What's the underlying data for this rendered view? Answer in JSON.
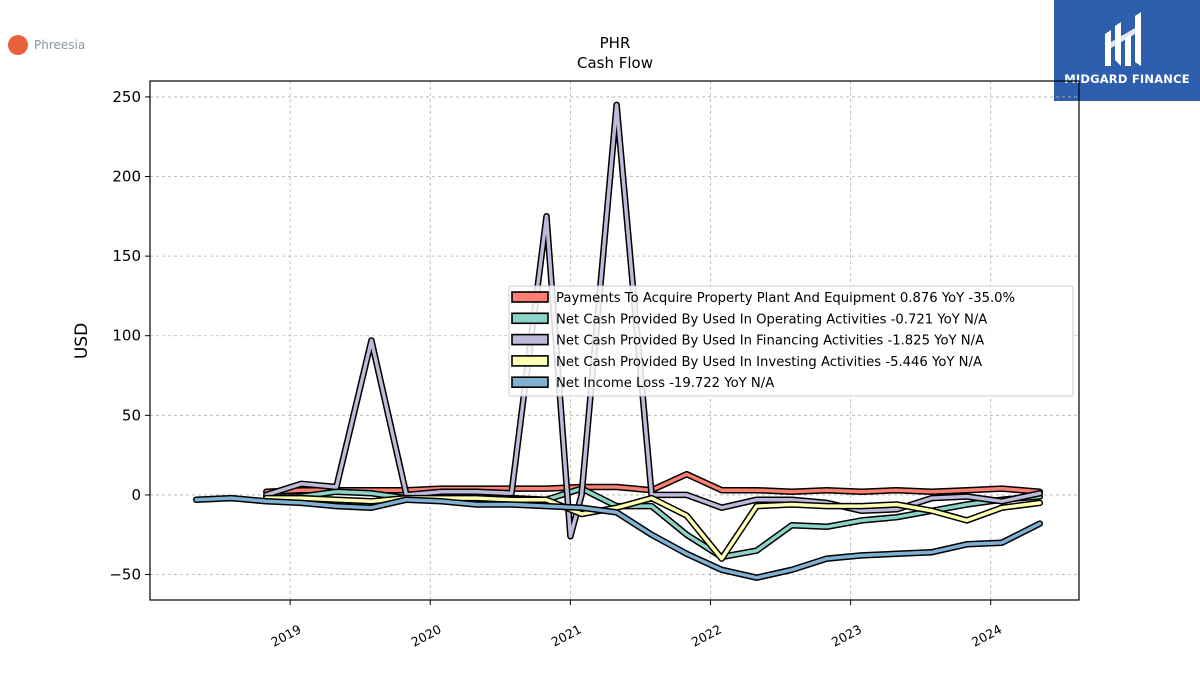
{
  "brand": {
    "name": "MIDGARD FINANCE",
    "color": "#2d5fae"
  },
  "company": {
    "name": "Phreesia",
    "logo_color": "#e8613a"
  },
  "chart_data": {
    "type": "line",
    "title": "PHR",
    "subtitle": "Cash Flow",
    "ylabel": "USD",
    "xlabel": "",
    "ylim": [
      -66,
      260
    ],
    "xlim": [
      2018.0,
      2024.63
    ],
    "yticks": [
      -50,
      0,
      50,
      100,
      150,
      200,
      250
    ],
    "xticks": [
      2019,
      2020,
      2021,
      2022,
      2023,
      2024
    ],
    "ytick_labels": [
      "−50",
      "0",
      "50",
      "100",
      "150",
      "200",
      "250"
    ],
    "xtick_labels": [
      "2019",
      "2020",
      "2021",
      "2022",
      "2023",
      "2024"
    ],
    "grid": true,
    "legend_position": "center-right",
    "series": [
      {
        "name": "Payments To Acquire Property Plant And Equipment  0.876 YoY -35.0%",
        "color": "#fb8072",
        "x": [
          2018.83,
          2019.08,
          2019.33,
          2019.58,
          2019.83,
          2020.08,
          2020.33,
          2020.58,
          2020.83,
          2021.08,
          2021.33,
          2021.58,
          2021.83,
          2022.08,
          2022.33,
          2022.58,
          2022.83,
          2023.08,
          2023.33,
          2023.58,
          2023.83,
          2024.08,
          2024.35
        ],
        "y": [
          2,
          3,
          3,
          3,
          3,
          4,
          4,
          4,
          4,
          5,
          5,
          3,
          13,
          3,
          3,
          2,
          3,
          2,
          3,
          2,
          3,
          4,
          2
        ]
      },
      {
        "name": "Net Cash Provided By Used In Operating Activities  -0.721 YoY N/A",
        "color": "#8dd3c7",
        "x": [
          2018.83,
          2019.08,
          2019.33,
          2019.58,
          2019.83,
          2020.08,
          2020.33,
          2020.58,
          2020.83,
          2021.08,
          2021.33,
          2021.58,
          2021.83,
          2022.08,
          2022.33,
          2022.58,
          2022.83,
          2023.08,
          2023.33,
          2023.58,
          2023.83,
          2024.08,
          2024.35
        ],
        "y": [
          -1,
          -1,
          2,
          1,
          -2,
          0,
          -1,
          -2,
          -3,
          4,
          -7,
          -7,
          -25,
          -39,
          -35,
          -19,
          -20,
          -16,
          -14,
          -10,
          -6,
          -3,
          -1
        ]
      },
      {
        "name": "Net Cash Provided By Used In Financing Activities  -1.825 YoY N/A",
        "color": "#bebada",
        "x": [
          2018.83,
          2019.08,
          2019.33,
          2019.58,
          2019.83,
          2020.08,
          2020.33,
          2020.58,
          2020.83,
          2021.0,
          2021.08,
          2021.33,
          2021.58,
          2021.83,
          2022.08,
          2022.33,
          2022.58,
          2022.83,
          2023.08,
          2023.33,
          2023.58,
          2023.83,
          2024.08,
          2024.35
        ],
        "y": [
          0,
          7,
          5,
          97,
          0,
          2,
          2,
          1,
          175,
          -26,
          0,
          245,
          0,
          0,
          -8,
          -3,
          -3,
          -5,
          -10,
          -9,
          -2,
          -1,
          -4,
          1
        ]
      },
      {
        "name": "Net Cash Provided By Used In Investing Activities  -5.446 YoY N/A",
        "color": "#ffffb3",
        "x": [
          2018.83,
          2019.08,
          2019.33,
          2019.58,
          2019.83,
          2020.08,
          2020.33,
          2020.58,
          2020.83,
          2021.08,
          2021.33,
          2021.58,
          2021.83,
          2022.08,
          2022.33,
          2022.58,
          2022.83,
          2023.08,
          2023.33,
          2023.58,
          2023.83,
          2024.08,
          2024.35
        ],
        "y": [
          -2,
          -2,
          -3,
          -4,
          -2,
          -2,
          -2,
          -3,
          -3,
          -12,
          -8,
          -2,
          -13,
          -40,
          -7,
          -6,
          -7,
          -7,
          -6,
          -10,
          -16,
          -8,
          -5
        ]
      },
      {
        "name": "Net Income Loss  -19.722 YoY N/A",
        "color": "#80b1d3",
        "x": [
          2018.33,
          2018.58,
          2018.83,
          2019.08,
          2019.33,
          2019.58,
          2019.83,
          2020.08,
          2020.33,
          2020.58,
          2020.83,
          2021.08,
          2021.33,
          2021.58,
          2021.83,
          2022.08,
          2022.33,
          2022.58,
          2022.83,
          2023.08,
          2023.33,
          2023.58,
          2023.83,
          2024.08,
          2024.35
        ],
        "y": [
          -3,
          -2,
          -4,
          -5,
          -7,
          -8,
          -3,
          -4,
          -6,
          -6,
          -7,
          -8,
          -11,
          -25,
          -37,
          -47,
          -52,
          -47,
          -40,
          -38,
          -37,
          -36,
          -31,
          -30,
          -18
        ]
      }
    ]
  }
}
